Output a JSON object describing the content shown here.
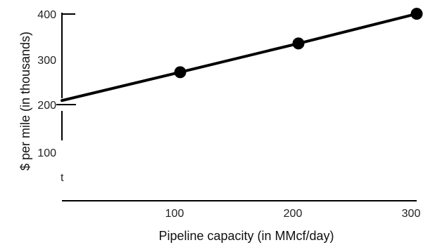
{
  "chart_data": {
    "type": "line",
    "title": "",
    "xlabel": "Pipeline capacity (in MMcf/day)",
    "ylabel": "$ per mile (in thousands)",
    "xlim": [
      0,
      300
    ],
    "ylim": [
      100,
      400
    ],
    "x_ticks": [
      "100",
      "200",
      "300"
    ],
    "y_ticks": [
      "400",
      "300",
      "200",
      "100"
    ],
    "stray_label": "t",
    "grid": false,
    "legend": "none",
    "series": [
      {
        "x": [
          0,
          100,
          200,
          300
        ],
        "y": [
          209,
          271,
          334,
          399
        ],
        "marker_points": [
          {
            "x": 100,
            "y": 271
          },
          {
            "x": 200,
            "y": 334
          },
          {
            "x": 300,
            "y": 399
          }
        ],
        "color": "#000000"
      }
    ]
  }
}
